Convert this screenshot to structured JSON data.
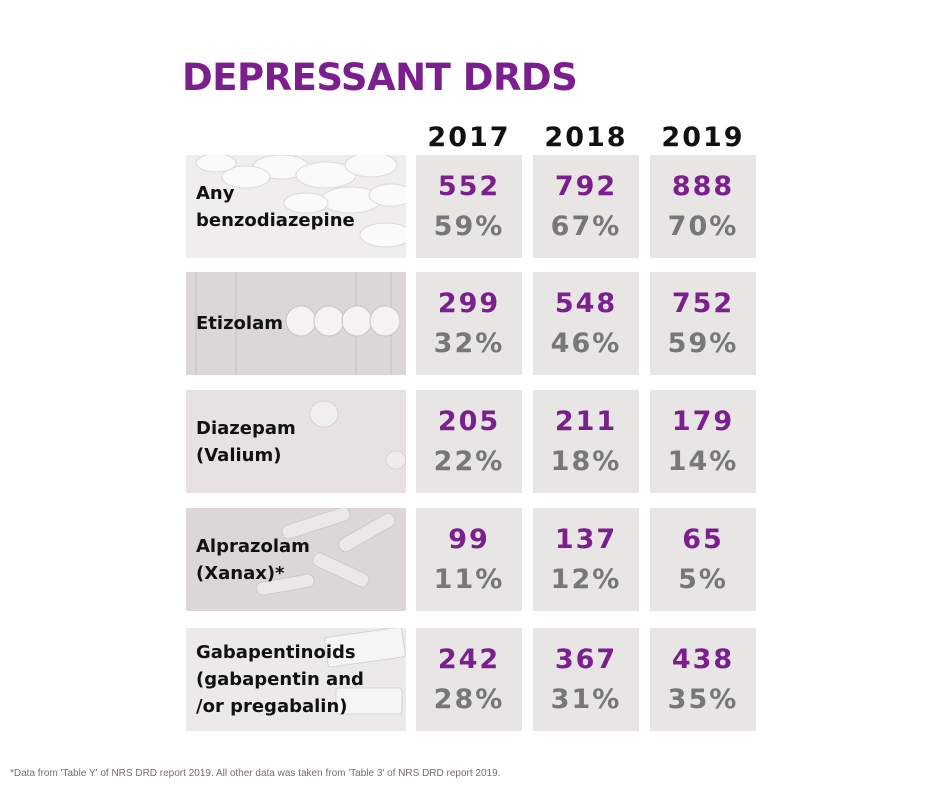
{
  "chart_data": {
    "type": "table",
    "title": "DEPRESSANT DRDS",
    "columns": [
      "2017",
      "2018",
      "2019"
    ],
    "rows": [
      {
        "label": "Any\nbenzodiazepine",
        "counts": [
          "552",
          "792",
          "888"
        ],
        "percents": [
          "59%",
          "67%",
          "70%"
        ]
      },
      {
        "label": "Etizolam",
        "counts": [
          "299",
          "548",
          "752"
        ],
        "percents": [
          "32%",
          "46%",
          "59%"
        ]
      },
      {
        "label": "Diazepam\n(Valium)",
        "counts": [
          "205",
          "211",
          "179"
        ],
        "percents": [
          "22%",
          "18%",
          "14%"
        ]
      },
      {
        "label": "Alprazolam\n(Xanax)*",
        "counts": [
          "99",
          "137",
          "65"
        ],
        "percents": [
          "11%",
          "12%",
          "5%"
        ]
      },
      {
        "label": "Gabapentinoids\n(gabapentin and\n/or pregabalin)",
        "counts": [
          "242",
          "367",
          "438"
        ],
        "percents": [
          "28%",
          "31%",
          "35%"
        ]
      }
    ],
    "footnote": "*Data from 'Table Y' of NRS DRD report 2019. All other data was taken from 'Table 3' of NRS DRD report 2019."
  },
  "colors": {
    "title": "#7b1f8e",
    "count": "#7b1f8e",
    "percent": "#777777",
    "cell_background": "#e8e6e4"
  }
}
